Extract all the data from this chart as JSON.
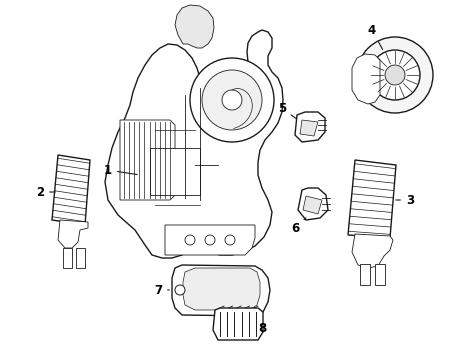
{
  "bg_color": "#ffffff",
  "line_color": "#1a1a1a",
  "label_color": "#000000",
  "figsize": [
    4.74,
    3.48
  ],
  "dpi": 100,
  "label_fs": 8.5
}
